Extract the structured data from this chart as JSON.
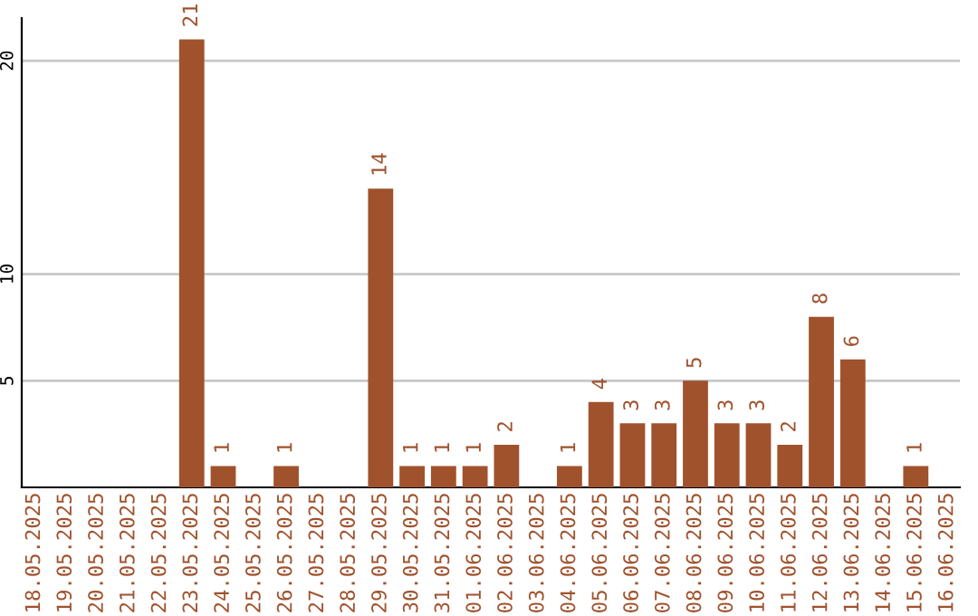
{
  "chart_data": {
    "type": "bar",
    "categories": [
      "18.05.2025",
      "19.05.2025",
      "20.05.2025",
      "21.05.2025",
      "22.05.2025",
      "23.05.2025",
      "24.05.2025",
      "25.05.2025",
      "26.05.2025",
      "27.05.2025",
      "28.05.2025",
      "29.05.2025",
      "30.05.2025",
      "31.05.2025",
      "01.06.2025",
      "02.06.2025",
      "03.06.2025",
      "04.06.2025",
      "05.06.2025",
      "06.06.2025",
      "07.06.2025",
      "08.06.2025",
      "09.06.2025",
      "10.06.2025",
      "11.06.2025",
      "12.06.2025",
      "13.06.2025",
      "14.06.2025",
      "15.06.2025",
      "16.06.2025"
    ],
    "values": [
      null,
      null,
      null,
      null,
      null,
      21,
      1,
      null,
      1,
      null,
      null,
      14,
      1,
      1,
      1,
      2,
      null,
      1,
      4,
      3,
      3,
      5,
      3,
      3,
      2,
      8,
      6,
      null,
      1,
      null
    ],
    "color": "#a0522d",
    "ylim": [
      0,
      22
    ],
    "yticks": [
      5,
      10,
      20
    ],
    "grid": "y",
    "data_labels": true
  }
}
